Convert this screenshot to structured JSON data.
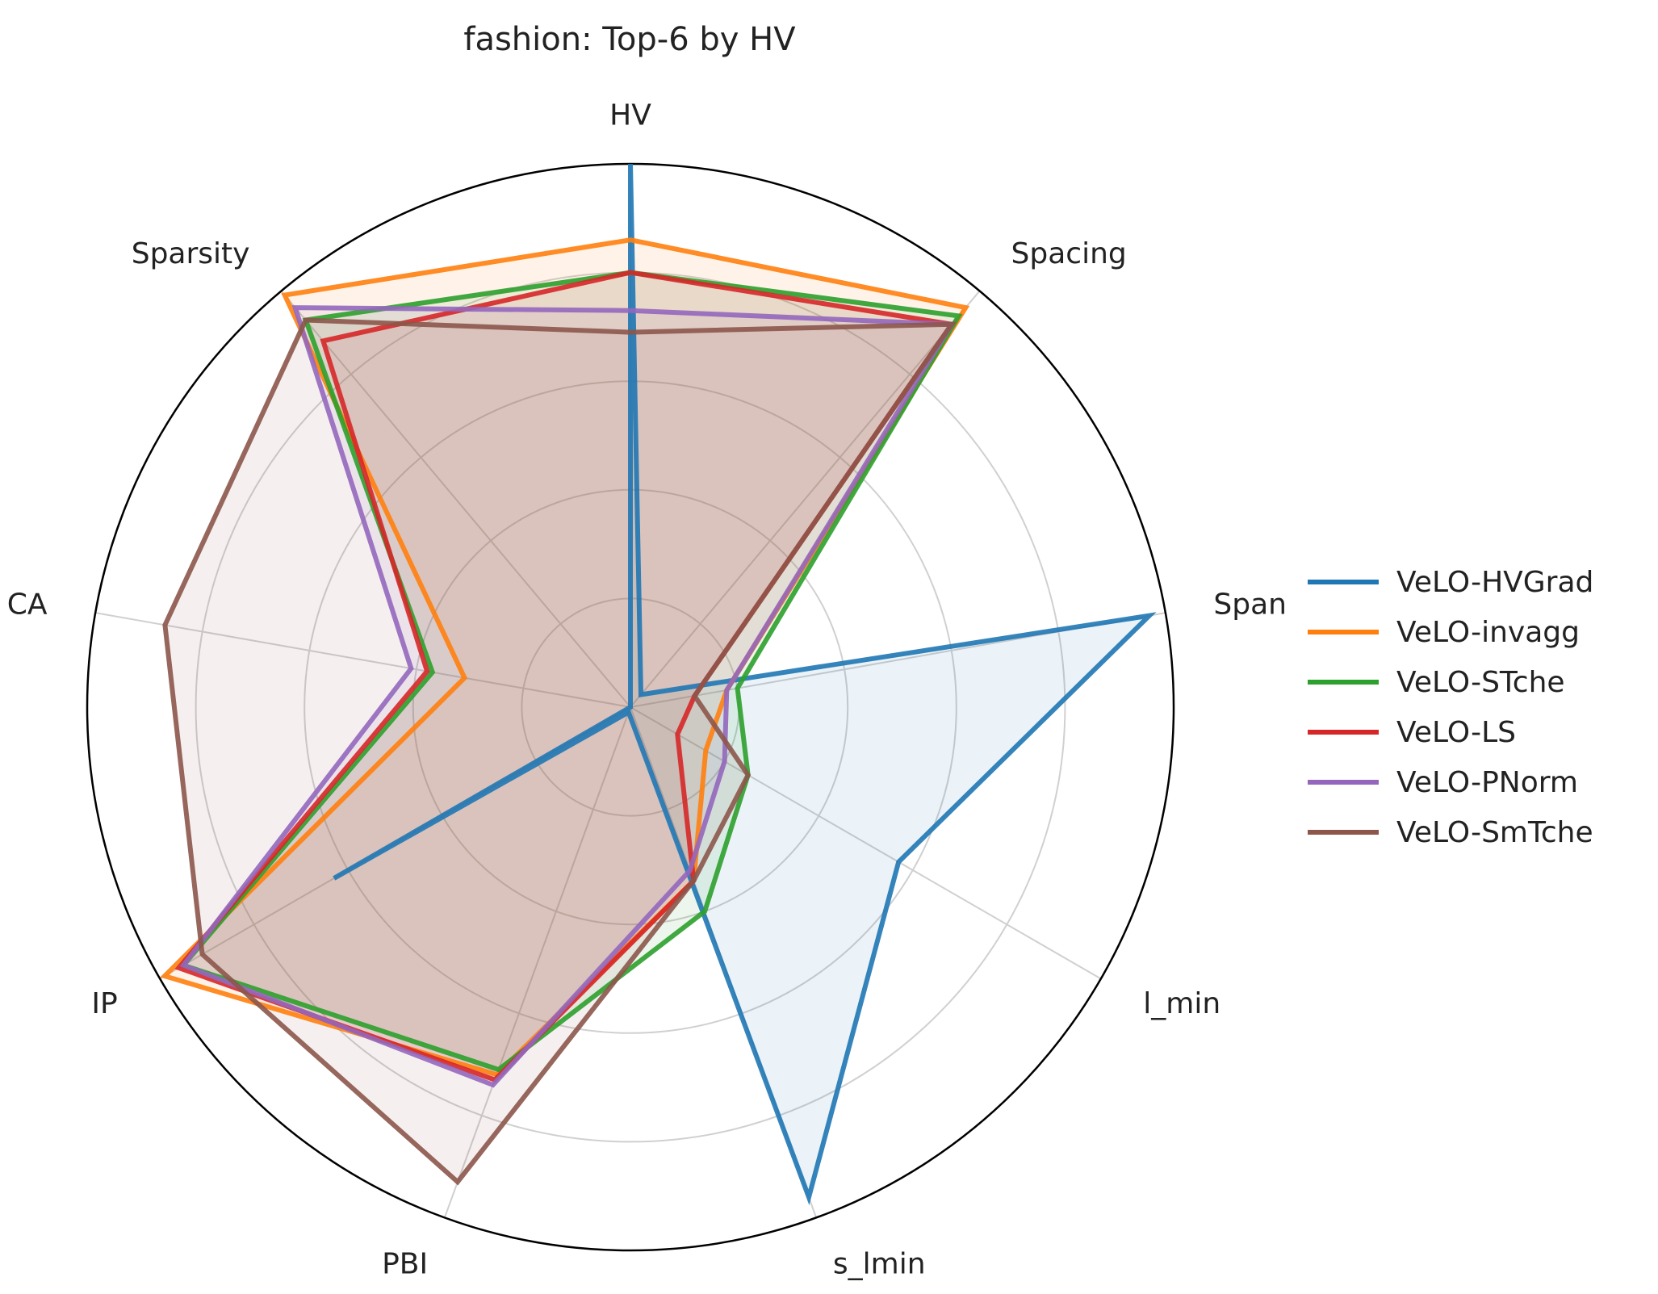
{
  "chart_data": {
    "type": "radar",
    "title": "fashion: Top-6 by HV",
    "axes": [
      "HV",
      "Spacing",
      "Span",
      "l_min",
      "s_lmin",
      "PBI",
      "IP",
      "CA",
      "Sparsity"
    ],
    "rlim": [
      0,
      1
    ],
    "grid": true,
    "legend": "right",
    "series": [
      {
        "name": "VeLO-HVGrad",
        "color": "#1f77b4",
        "values": [
          1.0,
          0.03,
          0.97,
          0.57,
          0.96,
          0.01,
          0.63,
          0.0,
          0.0
        ]
      },
      {
        "name": "VeLO-invagg",
        "color": "#ff7f0e",
        "values": [
          0.86,
          0.96,
          0.18,
          0.16,
          0.34,
          0.72,
          0.99,
          0.31,
          0.99
        ]
      },
      {
        "name": "VeLO-STche",
        "color": "#2ca02c",
        "values": [
          0.8,
          0.94,
          0.2,
          0.25,
          0.4,
          0.71,
          0.95,
          0.37,
          0.93
        ]
      },
      {
        "name": "VeLO-LS",
        "color": "#d62728",
        "values": [
          0.8,
          0.92,
          0.12,
          0.1,
          0.34,
          0.73,
          0.96,
          0.38,
          0.88
        ]
      },
      {
        "name": "VeLO-PNorm",
        "color": "#9467bd",
        "values": [
          0.73,
          0.92,
          0.18,
          0.2,
          0.32,
          0.74,
          0.95,
          0.41,
          0.96
        ]
      },
      {
        "name": "VeLO-SmTche",
        "color": "#8c564b",
        "values": [
          0.69,
          0.92,
          0.12,
          0.25,
          0.34,
          0.93,
          0.91,
          0.87,
          0.93
        ]
      }
    ]
  }
}
